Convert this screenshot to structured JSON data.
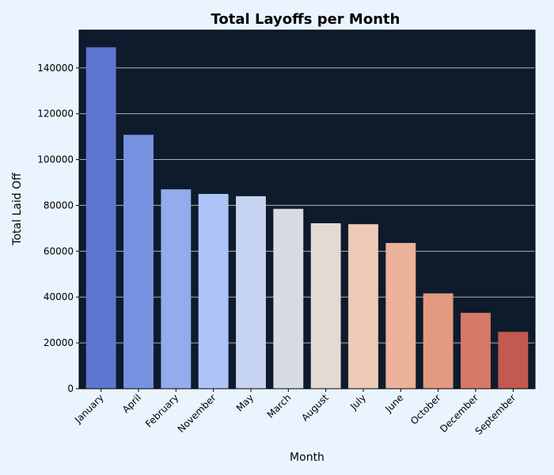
{
  "chart_data": {
    "type": "bar",
    "title": "Total Layoffs per Month",
    "xlabel": "Month",
    "ylabel": "Total Laid Off",
    "categories": [
      "January",
      "April",
      "February",
      "November",
      "May",
      "March",
      "August",
      "July",
      "June",
      "October",
      "December",
      "September"
    ],
    "values": [
      149000,
      110800,
      87000,
      85000,
      84000,
      78500,
      72200,
      71800,
      63600,
      41600,
      33100,
      24800
    ],
    "ylim": [
      0,
      156500
    ],
    "yticks": [
      0,
      20000,
      40000,
      60000,
      80000,
      100000,
      120000,
      140000
    ],
    "ytick_labels": [
      "0",
      "20000",
      "40000",
      "60000",
      "80000",
      "100000",
      "120000",
      "140000"
    ],
    "grid": "y",
    "colors": {
      "page_background": "#eaf4fe",
      "plot_background": "#0e1b2c",
      "gridline": "#b0b0b0",
      "bars": [
        "#5e76cf",
        "#7892e2",
        "#93aced",
        "#aec4f7",
        "#c6d4f1",
        "#d7dce4",
        "#e5d9d3",
        "#eecab6",
        "#ecb39a",
        "#e29a80",
        "#d67a68",
        "#c35a50"
      ]
    }
  }
}
